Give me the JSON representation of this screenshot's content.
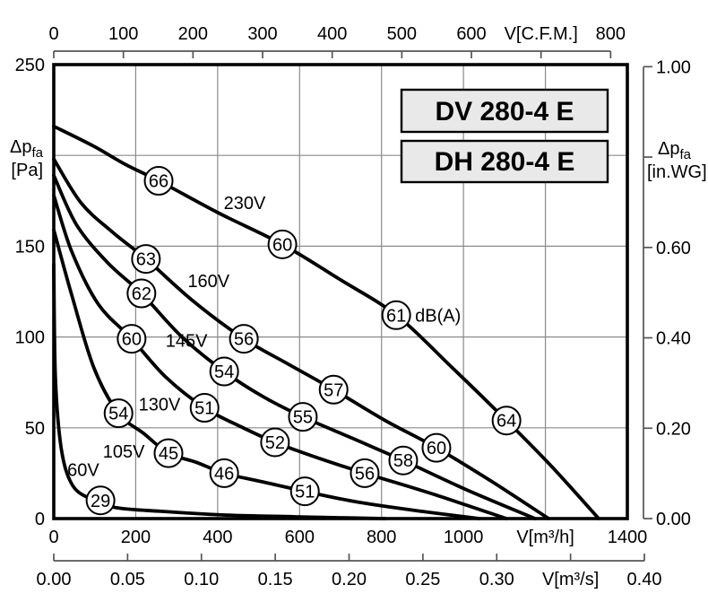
{
  "chart_data": {
    "type": "line",
    "titles": [
      "DV 280-4 E",
      "DH 280-4 E"
    ],
    "noise_unit": "dB(A)",
    "x_axis_bottom": {
      "unit": "V[m³/h]",
      "range": [
        0,
        1400
      ],
      "tick_step": 200,
      "labels": [
        "0",
        "200",
        "400",
        "600",
        "800",
        "1000",
        "V[m³/h]",
        "1400"
      ]
    },
    "x_axis_volume_per_sec": {
      "unit": "V[m³/s]",
      "range": [
        0,
        0.4
      ],
      "tick_step": 0.05,
      "labels": [
        "0.00",
        "0.05",
        "0.10",
        "0.15",
        "0.20",
        "0.25",
        "0.30",
        "V[m³/s]",
        "0.40"
      ]
    },
    "x_axis_top": {
      "unit": "V[C.F.M.]",
      "range": [
        0,
        800
      ],
      "tick_step": 100,
      "cfm_to_m3h": 1.699,
      "labels": [
        "0",
        "100",
        "200",
        "300",
        "400",
        "500",
        "600",
        "V[C.F.M.]",
        "800"
      ]
    },
    "y_axis_left": {
      "title_sym": "Δp",
      "title_sub": "fa",
      "title_unit": "[Pa]",
      "range": [
        0,
        250
      ],
      "tick_step": 50,
      "labels": [
        "250",
        "",
        "150",
        "100",
        "50",
        "0"
      ]
    },
    "y_axis_right": {
      "title_sym": "Δp",
      "title_sub": "fa",
      "title_unit": "[in.WG]",
      "range": [
        0,
        1.0
      ],
      "tick_step": 0.2,
      "inwg_to_pa": 248.84,
      "labels": [
        "1.00",
        "",
        "0.60",
        "0.40",
        "0.20",
        "0.00"
      ]
    },
    "series": [
      {
        "voltage": "230V",
        "label_at": [
          466,
          174
        ],
        "points": [
          [
            0,
            216
          ],
          [
            98,
            205
          ],
          [
            175,
            195
          ],
          [
            256,
            186
          ],
          [
            405,
            168
          ],
          [
            558,
            151
          ],
          [
            696,
            132
          ],
          [
            836,
            112
          ],
          [
            973,
            83
          ],
          [
            1105,
            54
          ],
          [
            1214,
            29
          ],
          [
            1330,
            0
          ]
        ],
        "markers": [
          {
            "db": "66",
            "at": [
              256,
              186
            ]
          },
          {
            "db": "60",
            "at": [
              558,
              151
            ]
          },
          {
            "db": "61",
            "at": [
              836,
              112
            ],
            "suffix": "dB(A)"
          },
          {
            "db": "64",
            "at": [
              1105,
              54
            ]
          }
        ]
      },
      {
        "voltage": "160V",
        "label_at": [
          378,
          131
        ],
        "points": [
          [
            0,
            198
          ],
          [
            66,
            174
          ],
          [
            142,
            158
          ],
          [
            225,
            143
          ],
          [
            339,
            120
          ],
          [
            464,
            99
          ],
          [
            573,
            85
          ],
          [
            683,
            71
          ],
          [
            809,
            54
          ],
          [
            934,
            39
          ],
          [
            1072,
            20
          ],
          [
            1208,
            0
          ]
        ],
        "markers": [
          {
            "db": "63",
            "at": [
              225,
              143
            ]
          },
          {
            "db": "56",
            "at": [
              464,
              99
            ]
          },
          {
            "db": "57",
            "at": [
              683,
              71
            ]
          },
          {
            "db": "60",
            "at": [
              934,
              39
            ]
          }
        ]
      },
      {
        "voltage": "145V",
        "label_at": [
          324,
          98
        ],
        "points": [
          [
            0,
            189
          ],
          [
            55,
            162
          ],
          [
            131,
            141
          ],
          [
            214,
            124
          ],
          [
            313,
            100
          ],
          [
            416,
            81
          ],
          [
            512,
            67
          ],
          [
            608,
            56
          ],
          [
            731,
            44
          ],
          [
            853,
            32
          ],
          [
            1006,
            16
          ],
          [
            1175,
            0
          ]
        ],
        "markers": [
          {
            "db": "62",
            "at": [
              214,
              124
            ]
          },
          {
            "db": "54",
            "at": [
              416,
              81
            ]
          },
          {
            "db": "55",
            "at": [
              608,
              56
            ]
          },
          {
            "db": "58",
            "at": [
              853,
              32
            ]
          }
        ]
      },
      {
        "voltage": "130V",
        "label_at": [
          258,
          63
        ],
        "points": [
          [
            0,
            178
          ],
          [
            44,
            147
          ],
          [
            109,
            118
          ],
          [
            190,
            99
          ],
          [
            273,
            78
          ],
          [
            368,
            61
          ],
          [
            453,
            51
          ],
          [
            540,
            42
          ],
          [
            650,
            33
          ],
          [
            759,
            25
          ],
          [
            919,
            14
          ],
          [
            1105,
            0
          ]
        ],
        "markers": [
          {
            "db": "60",
            "at": [
              190,
              99
            ]
          },
          {
            "db": "51",
            "at": [
              368,
              61
            ]
          },
          {
            "db": "52",
            "at": [
              540,
              42
            ]
          },
          {
            "db": "56",
            "at": [
              759,
              25
            ]
          }
        ]
      },
      {
        "voltage": "105V",
        "label_at": [
          171,
          37
        ],
        "points": [
          [
            0,
            159
          ],
          [
            44,
            123
          ],
          [
            98,
            83
          ],
          [
            158,
            58
          ],
          [
            219,
            47
          ],
          [
            280,
            36
          ],
          [
            348,
            31
          ],
          [
            416,
            25
          ],
          [
            514,
            20
          ],
          [
            613,
            15
          ],
          [
            744,
            9
          ],
          [
            897,
            4
          ],
          [
            1039,
            0
          ]
        ],
        "markers": [
          {
            "db": "54",
            "at": [
              158,
              58
            ]
          },
          {
            "db": "45",
            "at": [
              280,
              36
            ]
          },
          {
            "db": "46",
            "at": [
              416,
              25
            ]
          },
          {
            "db": "51",
            "at": [
              613,
              15
            ]
          }
        ]
      },
      {
        "voltage": "60V",
        "label_at": [
          72,
          27
        ],
        "points": [
          [
            0,
            140
          ],
          [
            4,
            78
          ],
          [
            18,
            39
          ],
          [
            44,
            19
          ],
          [
            88,
            11
          ],
          [
            153,
            6
          ],
          [
            262,
            4
          ],
          [
            416,
            2
          ],
          [
            590,
            1
          ],
          [
            809,
            0
          ]
        ],
        "markers": [
          {
            "db": "29",
            "at": [
              114,
              10
            ]
          }
        ]
      }
    ],
    "plot": {
      "background": "#ffffff",
      "border_color": "#000000",
      "grid_color": "#8a8a8a",
      "title_box_fill": "#e9e9e9"
    }
  }
}
